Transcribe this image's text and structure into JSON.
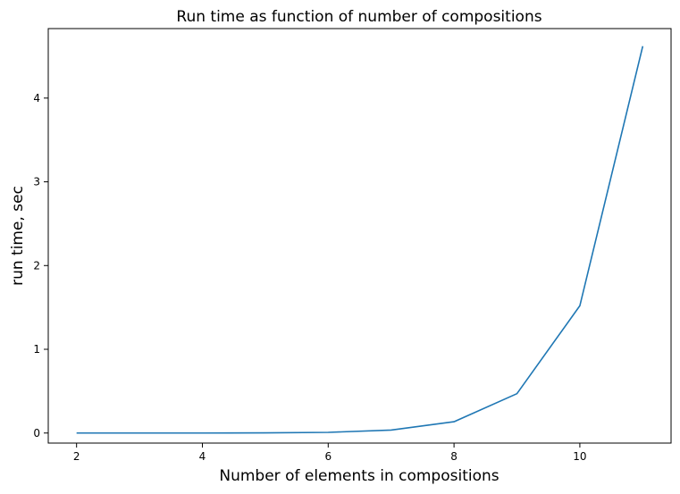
{
  "chart_data": {
    "type": "line",
    "title": "Run time as function of number of compositions",
    "xlabel": "Number of elements in compositions",
    "ylabel": "run time, sec",
    "x": [
      2,
      3,
      4,
      5,
      6,
      7,
      8,
      9,
      10,
      11
    ],
    "series": [
      {
        "values": [
          0.0,
          0.0,
          0.0,
          0.002,
          0.008,
          0.035,
          0.135,
          0.47,
          1.52,
          4.62
        ],
        "color": "#1f77b4"
      }
    ],
    "xlim": [
      1.55,
      11.45
    ],
    "ylim": [
      -0.12,
      4.83
    ],
    "xticks": [
      2,
      4,
      6,
      8,
      10
    ],
    "yticks": [
      0,
      1,
      2,
      3,
      4
    ],
    "grid": false
  }
}
